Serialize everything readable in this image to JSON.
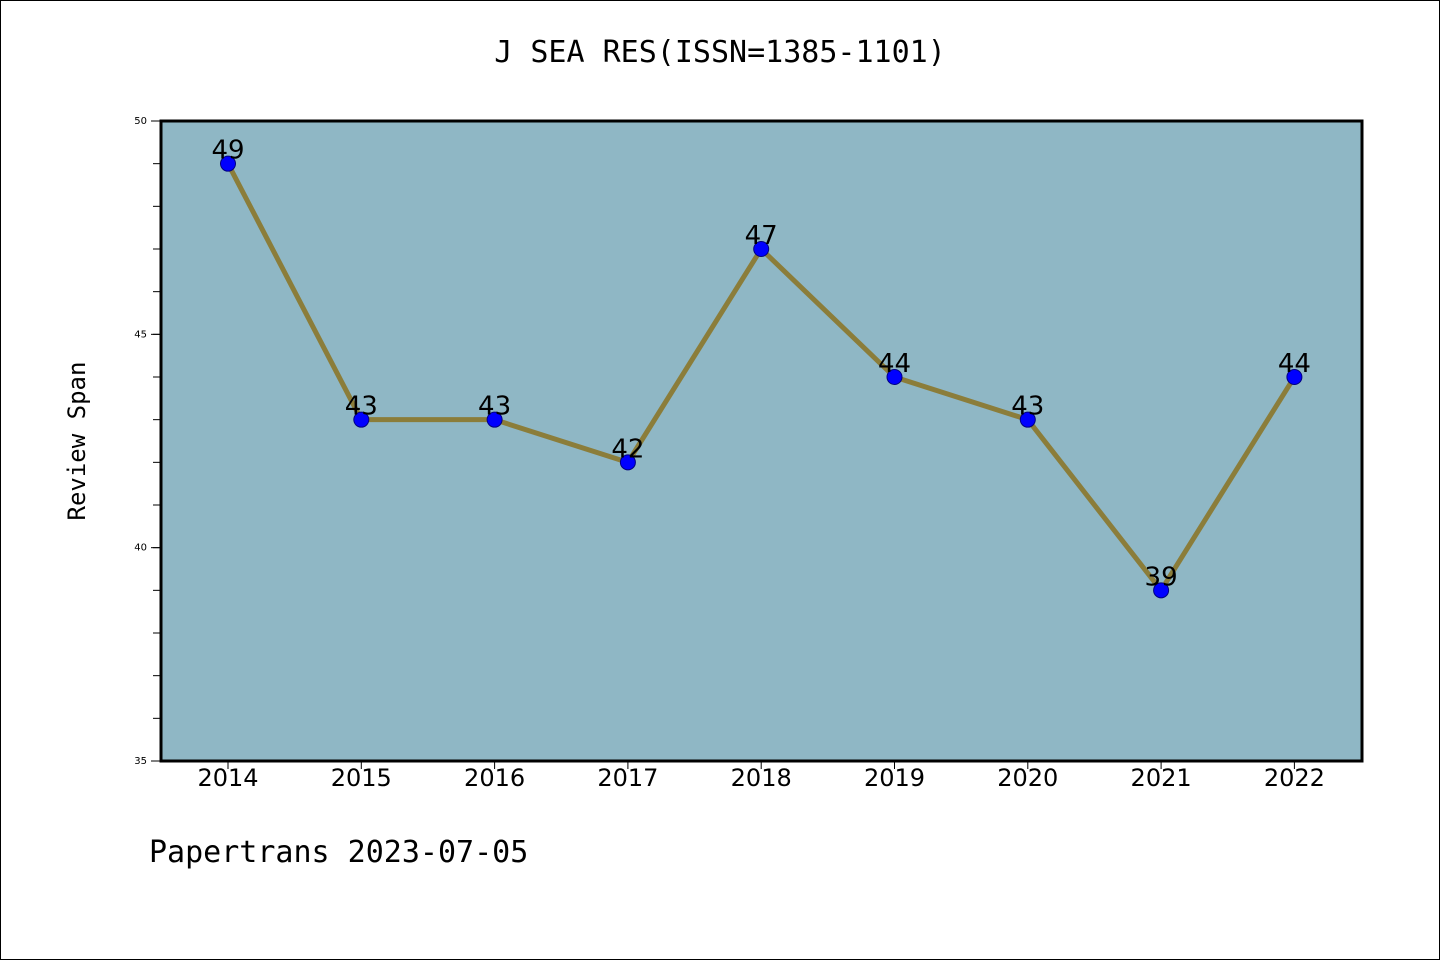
{
  "chart_data": {
    "type": "line",
    "title": "J SEA RES(ISSN=1385-1101)",
    "xlabel": "",
    "ylabel": "Review Span",
    "categories": [
      "2014",
      "2015",
      "2016",
      "2017",
      "2018",
      "2019",
      "2020",
      "2021",
      "2022"
    ],
    "series": [
      {
        "values": [
          49,
          43,
          43,
          42,
          47,
          44,
          43,
          39,
          44
        ]
      }
    ],
    "data_labels": [
      "49",
      "43",
      "43",
      "42",
      "47",
      "44",
      "43",
      "39",
      "44"
    ],
    "ylim": [
      35,
      50
    ],
    "y_ticks": [
      35,
      40,
      45,
      50
    ],
    "y_tick_labels": [
      "35",
      "40",
      "45",
      "50"
    ],
    "grid": false,
    "legend": "none",
    "colors": {
      "plot_background": "#8fb7c5",
      "line": "#8b7d3a",
      "marker_fill": "#0000ff",
      "marker_edge": "#000080"
    }
  },
  "footer": {
    "credit": "Papertrans 2023-07-05"
  }
}
